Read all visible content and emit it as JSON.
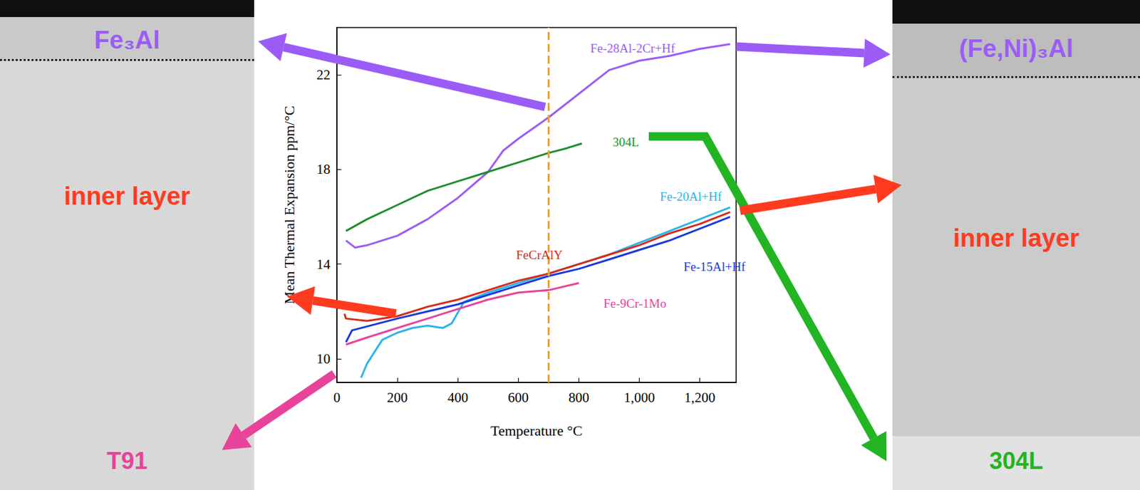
{
  "chart_data": {
    "type": "line",
    "x_label": "Temperature °C",
    "y_label": "Mean Thermal Expansion ppm/°C",
    "xlim": [
      0,
      1320
    ],
    "xticks": [
      0,
      200,
      400,
      600,
      800,
      1000,
      1200
    ],
    "ylim": [
      9,
      24
    ],
    "yticks": [
      10,
      14,
      18,
      22
    ],
    "grid": false,
    "legend": false,
    "annotations": [
      {
        "type": "vline",
        "x": 700,
        "color": "#f5a020",
        "line_style": "dashed"
      }
    ],
    "series": [
      {
        "name": "Fe-28Al-2Cr+Hf",
        "color": "#9b5cf6",
        "x": [
          30,
          60,
          100,
          200,
          300,
          400,
          500,
          550,
          600,
          700,
          800,
          900,
          1000,
          1100,
          1200,
          1300
        ],
        "values": [
          15.0,
          14.7,
          14.8,
          15.2,
          15.9,
          16.8,
          17.9,
          18.8,
          19.3,
          20.2,
          21.2,
          22.2,
          22.6,
          22.8,
          23.1,
          23.3
        ]
      },
      {
        "name": "304L",
        "color": "#1f8f2a",
        "x": [
          30,
          100,
          200,
          300,
          400,
          500,
          600,
          700,
          760,
          810
        ],
        "values": [
          15.4,
          15.9,
          16.5,
          17.1,
          17.5,
          17.9,
          18.3,
          18.7,
          18.9,
          19.1
        ]
      },
      {
        "name": "Fe-20Al+Hf",
        "color": "#2bb5e8",
        "x": [
          80,
          100,
          150,
          200,
          250,
          300,
          350,
          380,
          420,
          500,
          600,
          700,
          800,
          900,
          1000,
          1100,
          1200,
          1300
        ],
        "values": [
          9.2,
          9.8,
          10.8,
          11.1,
          11.3,
          11.4,
          11.3,
          11.5,
          12.4,
          12.8,
          13.2,
          13.6,
          14.0,
          14.4,
          14.9,
          15.4,
          15.9,
          16.4
        ]
      },
      {
        "name": "FeCrAlY",
        "color": "#d62c1a",
        "x": [
          25,
          30,
          100,
          200,
          300,
          400,
          500,
          600,
          700,
          800,
          900,
          1000,
          1100,
          1200,
          1300
        ],
        "values": [
          11.9,
          11.7,
          11.6,
          11.8,
          12.2,
          12.5,
          12.9,
          13.3,
          13.6,
          14.0,
          14.4,
          14.8,
          15.3,
          15.7,
          16.2
        ]
      },
      {
        "name": "Fe-15Al+Hf",
        "color": "#1a3adb",
        "x": [
          30,
          50,
          200,
          300,
          400,
          500,
          600,
          700,
          800,
          900,
          1000,
          1100,
          1200,
          1300
        ],
        "values": [
          10.7,
          11.2,
          11.7,
          12.0,
          12.3,
          12.7,
          13.1,
          13.5,
          13.8,
          14.2,
          14.6,
          15.0,
          15.5,
          16.0
        ]
      },
      {
        "name": "Fe-9Cr-1Mo",
        "color": "#e8439a",
        "x": [
          30,
          100,
          200,
          300,
          400,
          500,
          600,
          700,
          800
        ],
        "values": [
          10.6,
          10.9,
          11.3,
          11.7,
          12.1,
          12.5,
          12.8,
          12.9,
          13.2
        ]
      }
    ]
  },
  "panels": [
    {
      "top_layer": "Fe₃Al",
      "middle": "inner layer",
      "substrate": "T91"
    },
    {
      "top_layer": "(Fe,Ni)₃Al",
      "middle": "inner layer",
      "substrate": "304L"
    }
  ]
}
